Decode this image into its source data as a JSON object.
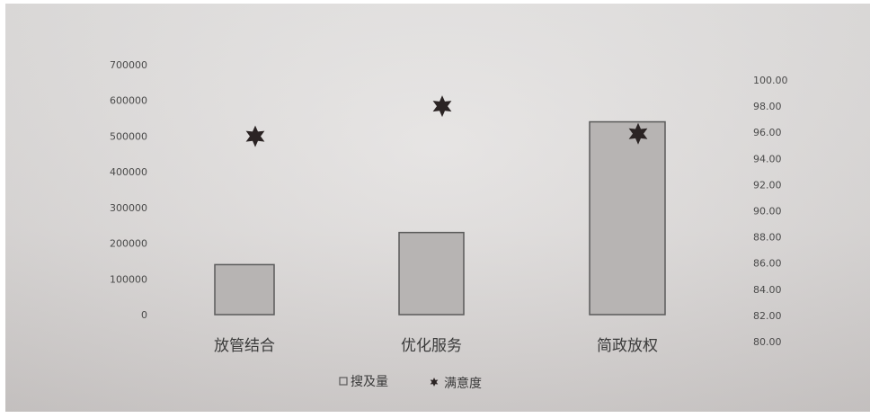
{
  "chart_data": {
    "type": "bar",
    "categories": [
      "放管结合",
      "优化服务",
      "简政放权"
    ],
    "series": [
      {
        "name": "搜及量",
        "type": "bar",
        "axis": "left",
        "values": [
          140000,
          230000,
          540000
        ]
      },
      {
        "name": "满意度",
        "type": "scatter",
        "axis": "right",
        "marker": "star",
        "values": [
          95.7,
          98.0,
          95.9
        ]
      }
    ],
    "y_left": {
      "ylim": [
        0,
        700000
      ],
      "ticks": [
        "0",
        "100000",
        "200000",
        "300000",
        "400000",
        "500000",
        "600000",
        "700000"
      ]
    },
    "y_right": {
      "ylim": [
        80,
        100
      ],
      "ticks": [
        "80.00",
        "82.00",
        "84.00",
        "86.00",
        "88.00",
        "90.00",
        "92.00",
        "94.00",
        "96.00",
        "98.00",
        "100.00"
      ]
    },
    "legend": {
      "position": "bottom",
      "items": [
        "搜及量",
        "满意度"
      ]
    },
    "grid": false,
    "colors": {
      "bar_fill": "#b7b4b3",
      "bar_stroke": "#5a5a5a",
      "marker": "#2b2424",
      "text": "#3a3a3a"
    }
  }
}
